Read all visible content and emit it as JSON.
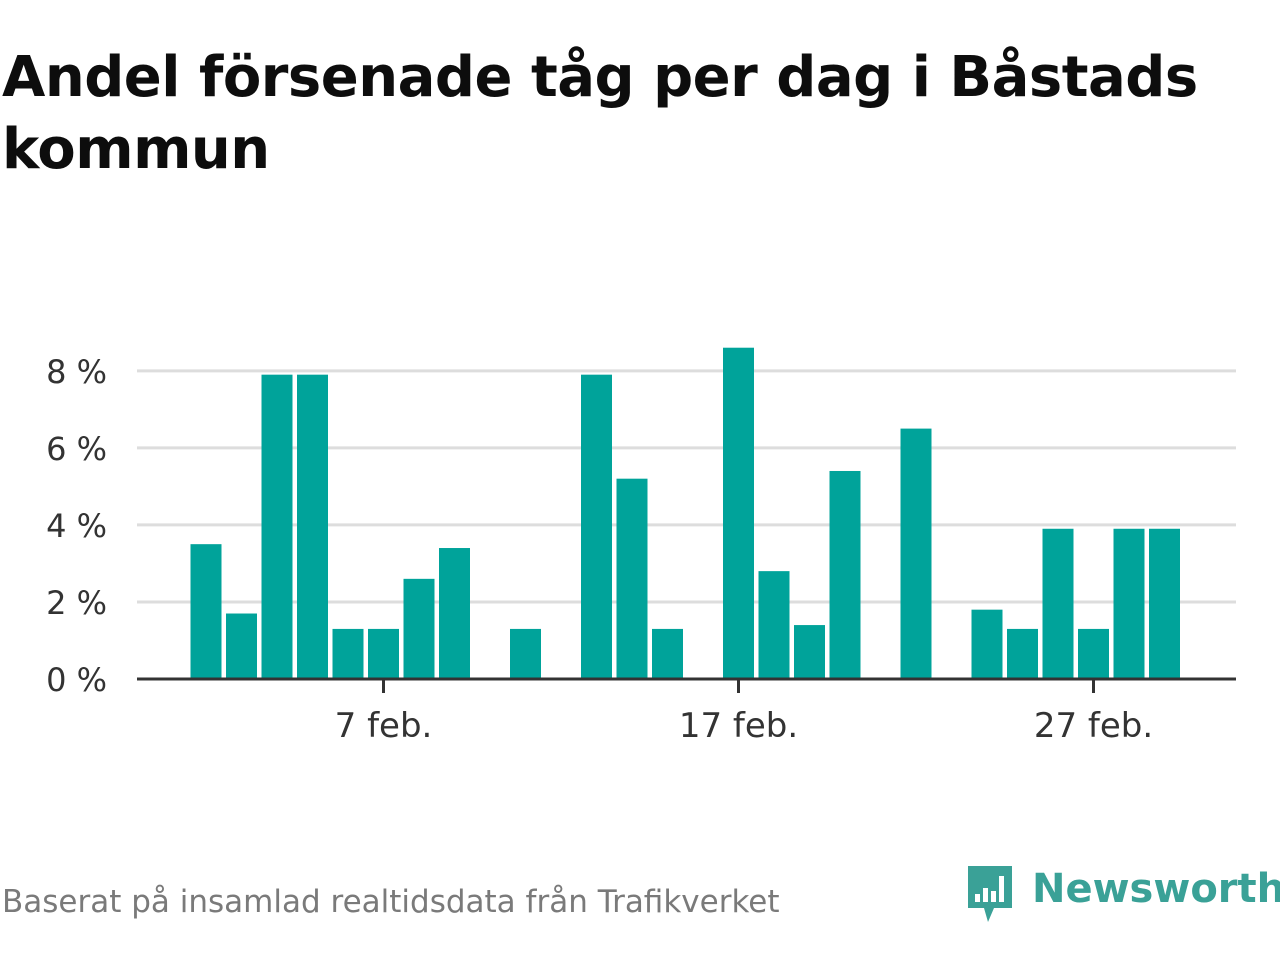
{
  "chart_data": {
    "type": "bar",
    "title": "Andel försenade tåg per dag i Båstads kommun",
    "xlabel": "",
    "ylabel": "",
    "x_unit": "day of February",
    "x": [
      2,
      3,
      4,
      5,
      6,
      7,
      8,
      9,
      10,
      11,
      12,
      13,
      14,
      15,
      16,
      17,
      18,
      19,
      20,
      21,
      22,
      23,
      24,
      25,
      26,
      27,
      28
    ],
    "values": [
      3.5,
      1.7,
      7.9,
      7.9,
      1.3,
      1.3,
      2.6,
      3.4,
      0,
      1.3,
      0,
      7.9,
      5.2,
      1.3,
      0,
      8.6,
      2.8,
      1.4,
      5.4,
      0,
      6.5,
      0,
      1.8,
      1.3,
      3.9,
      1.3,
      3.9
    ],
    "values_extra": {
      "29": 3.9
    },
    "ylim": [
      0,
      8.8
    ],
    "y_ticks": [
      0,
      2,
      4,
      6,
      8
    ],
    "y_tick_labels": [
      "0 %",
      "2 %",
      "4 %",
      "6 %",
      "8 %"
    ],
    "x_ticks": [
      7,
      17,
      27
    ],
    "x_tick_labels": [
      "7 feb.",
      "17 feb.",
      "27 feb."
    ],
    "bar_color": "#00a39a",
    "grid": true,
    "grid_color": "#dddddd",
    "axis_color": "#333333",
    "legend": "none"
  },
  "footer": {
    "source": "Baserat på insamlad realtidsdata från Trafikverket"
  },
  "brand": {
    "name": "Newsworthy",
    "icon": "newsworthy-logo-icon",
    "color": "#3aa197"
  }
}
